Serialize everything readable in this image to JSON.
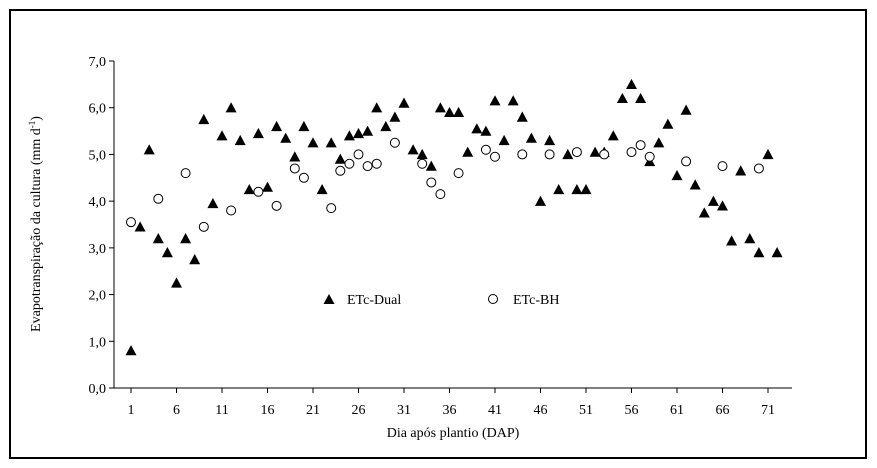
{
  "chart_data": {
    "type": "scatter",
    "xlabel": "Dia após plantio (DAP)",
    "ylabel_main": "Evapotranspiração da cultura (mm d",
    "ylabel_sup": "-1",
    "ylabel_close": ")",
    "xticks": [
      "1",
      "6",
      "11",
      "16",
      "21",
      "26",
      "31",
      "36",
      "41",
      "46",
      "51",
      "56",
      "61",
      "66",
      "71"
    ],
    "yticks": [
      "0,0",
      "1,0",
      "2,0",
      "3,0",
      "4,0",
      "5,0",
      "6,0",
      "7,0"
    ],
    "xlim": [
      1,
      73
    ],
    "ylim": [
      0,
      7
    ],
    "grid": false,
    "legend_position": "center",
    "series": [
      {
        "name": "ETc-Dual",
        "marker": "triangle",
        "x": [
          1,
          2,
          3,
          4,
          5,
          6,
          7,
          8,
          9,
          10,
          11,
          12,
          13,
          14,
          15,
          16,
          17,
          18,
          19,
          20,
          21,
          22,
          23,
          24,
          25,
          26,
          27,
          28,
          29,
          30,
          31,
          32,
          33,
          34,
          35,
          36,
          37,
          38,
          39,
          40,
          41,
          42,
          43,
          44,
          45,
          46,
          47,
          48,
          49,
          50,
          51,
          52,
          53,
          54,
          55,
          56,
          57,
          58,
          59,
          60,
          61,
          62,
          63,
          64,
          65,
          66,
          67,
          68,
          69,
          70,
          71,
          72
        ],
        "y": [
          0.8,
          3.45,
          5.1,
          3.2,
          2.9,
          2.25,
          3.2,
          2.75,
          5.75,
          3.95,
          5.4,
          6.0,
          5.3,
          4.25,
          5.45,
          4.3,
          5.6,
          5.35,
          4.95,
          5.6,
          5.25,
          4.25,
          5.25,
          4.9,
          5.4,
          5.45,
          5.5,
          6.0,
          5.6,
          5.8,
          6.1,
          5.1,
          5.0,
          4.75,
          6.0,
          5.9,
          5.9,
          5.05,
          5.55,
          5.5,
          6.15,
          5.3,
          6.15,
          5.8,
          5.35,
          4.0,
          5.3,
          4.25,
          5.0,
          4.25,
          4.25,
          5.05,
          5.05,
          5.4,
          6.2,
          6.5,
          6.2,
          4.85,
          5.25,
          5.65,
          4.55,
          5.95,
          4.35,
          3.75,
          4.0,
          3.9,
          3.15,
          4.65,
          3.2,
          2.9,
          5.0,
          2.9
        ]
      },
      {
        "name": "ETc-BH",
        "marker": "circle",
        "x": [
          1,
          4,
          7,
          9,
          12,
          15,
          17,
          19,
          20,
          23,
          24,
          25,
          26,
          27,
          28,
          30,
          33,
          34,
          35,
          37,
          40,
          41,
          44,
          47,
          50,
          53,
          56,
          57,
          58,
          62,
          66,
          70
        ],
        "y": [
          3.55,
          4.05,
          4.6,
          3.45,
          3.8,
          4.2,
          3.9,
          4.7,
          4.5,
          3.85,
          4.65,
          4.8,
          5.0,
          4.75,
          4.8,
          5.25,
          4.8,
          4.4,
          4.15,
          4.6,
          5.1,
          4.95,
          5.0,
          5.0,
          5.05,
          5.0,
          5.05,
          5.2,
          4.95,
          4.85,
          4.75,
          4.7
        ]
      }
    ]
  },
  "colors": {
    "marker": "#000000",
    "axis": "#000000",
    "background": "#ffffff"
  }
}
